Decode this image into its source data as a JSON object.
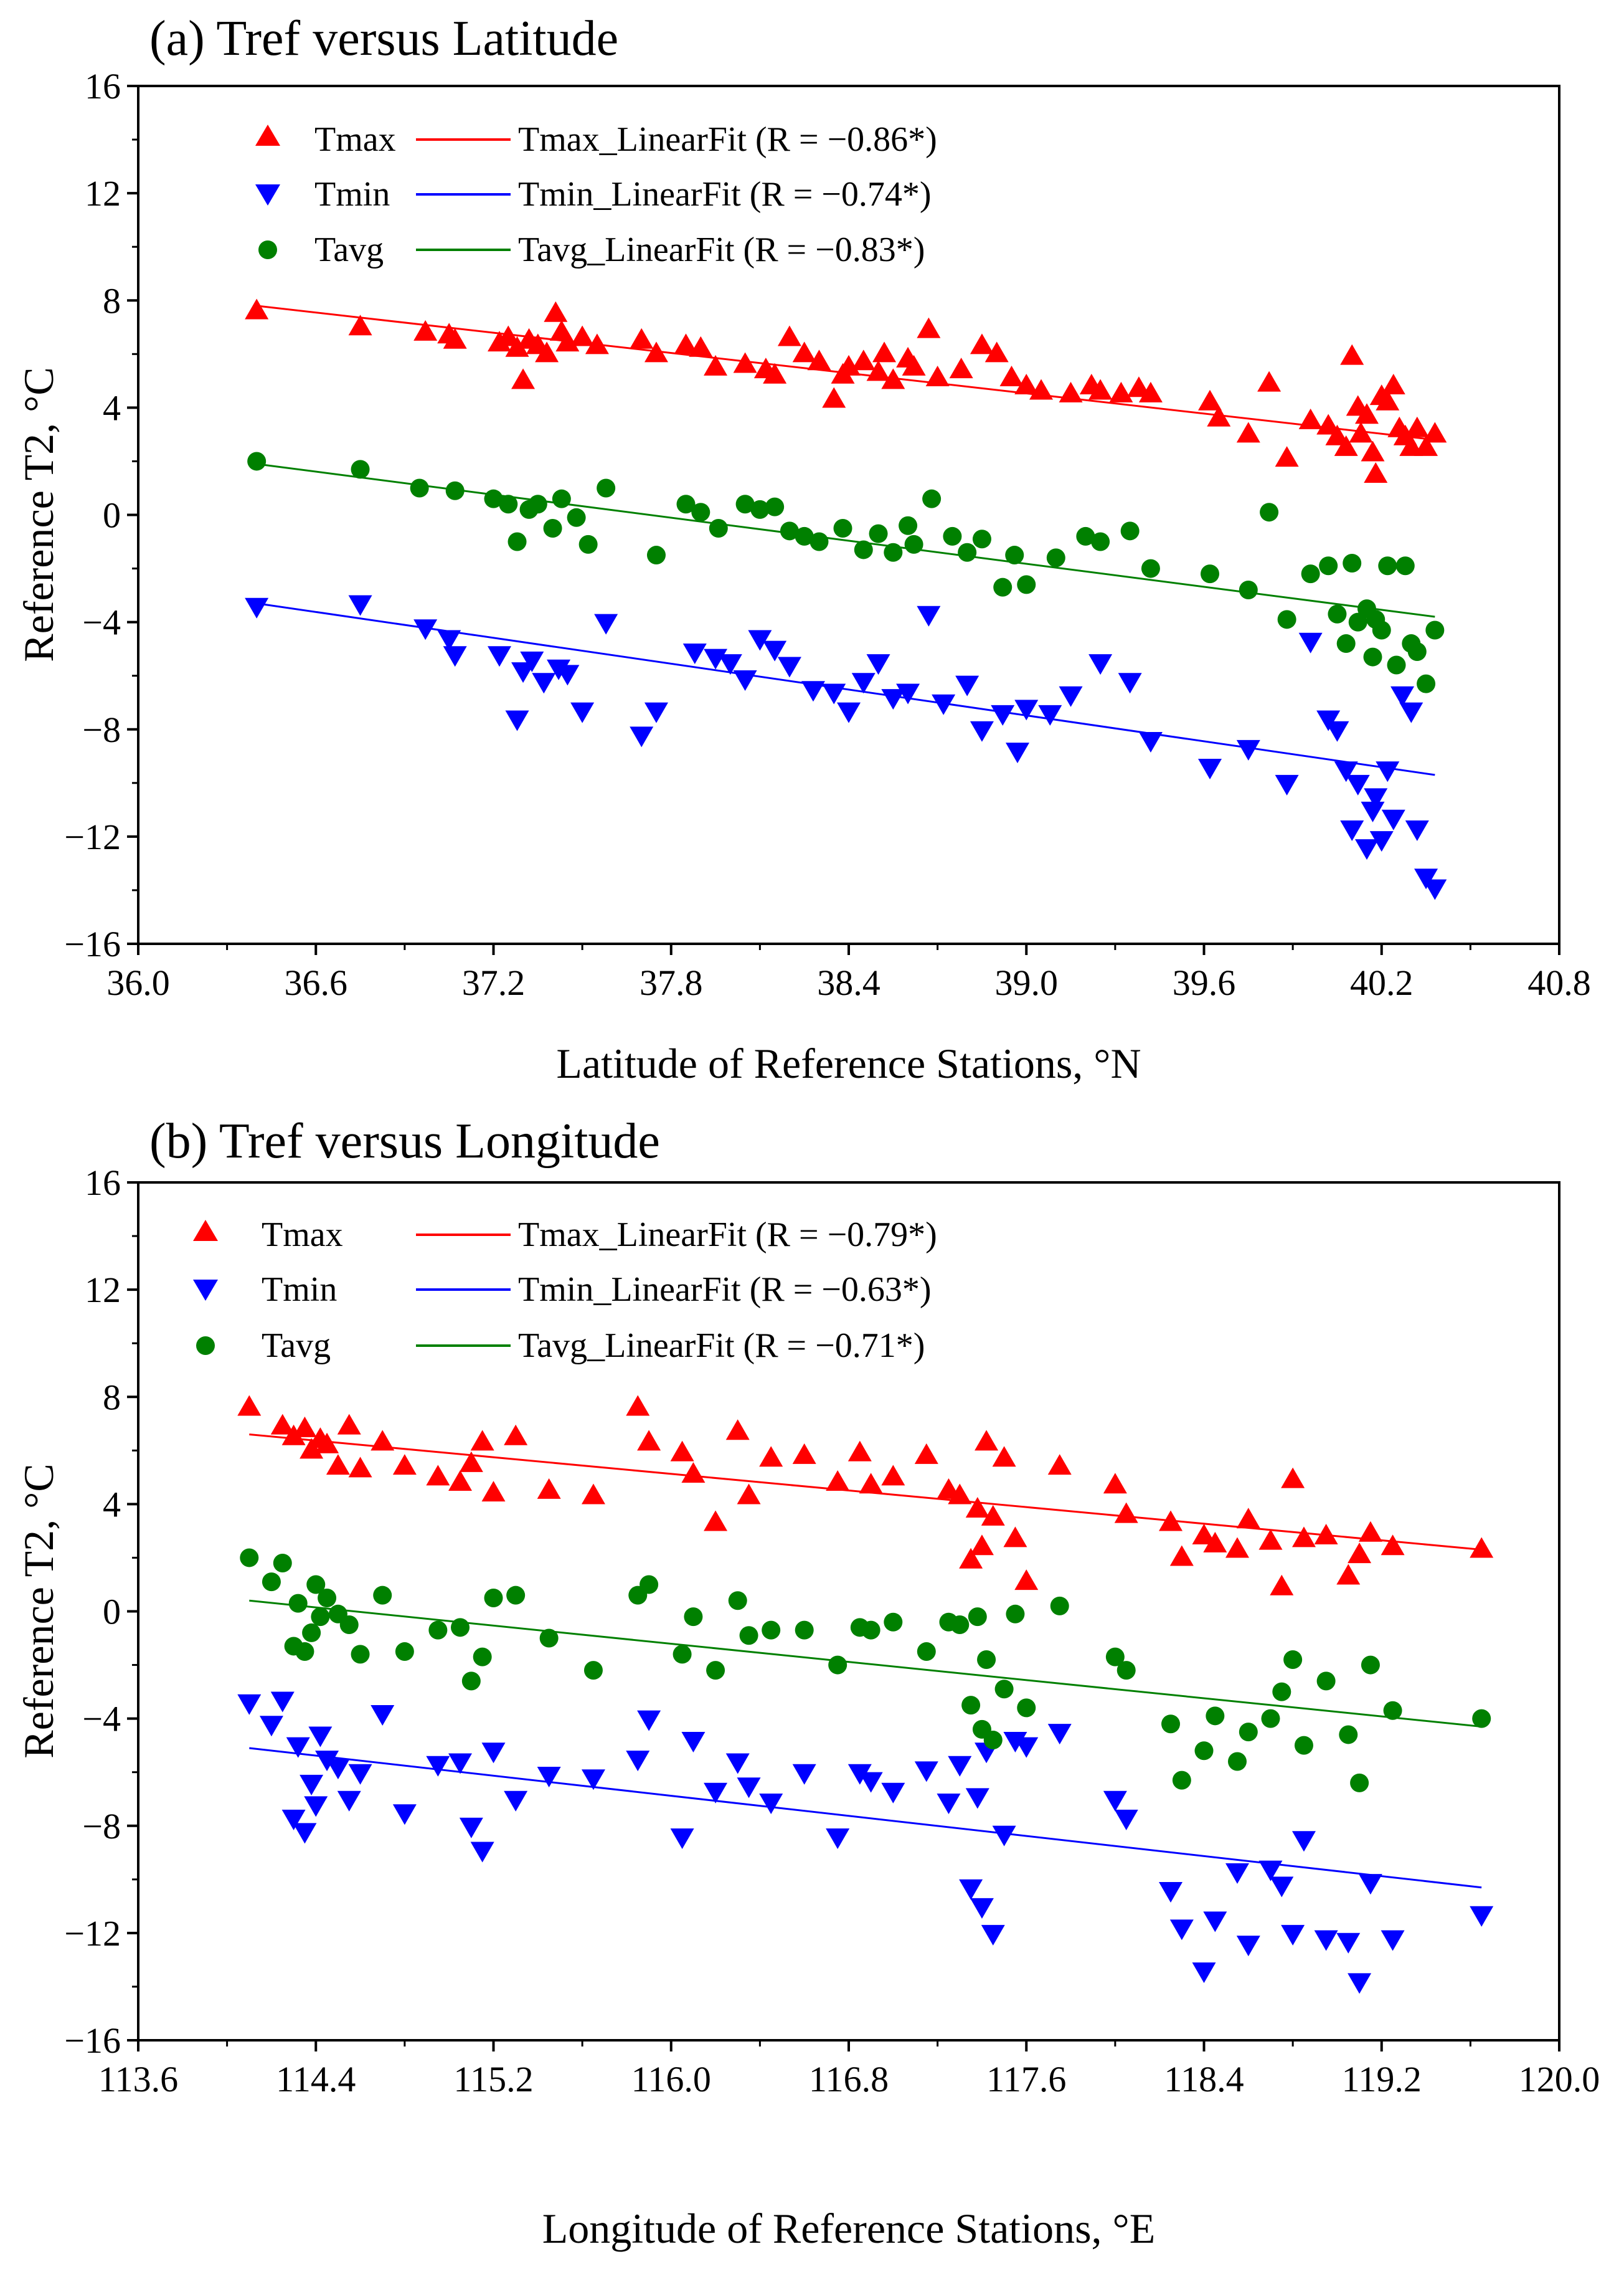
{
  "chart_data": [
    {
      "type": "scatter",
      "title": "(a) Tref versus Latitude",
      "xlabel": "Latitude of Reference Stations, °N",
      "ylabel": "Reference T2, °C",
      "xlim": [
        36.0,
        40.8
      ],
      "ylim": [
        -16,
        16
      ],
      "xticks": [
        "36.0",
        "36.6",
        "37.2",
        "37.8",
        "38.4",
        "39.0",
        "39.6",
        "40.2",
        "40.8"
      ],
      "yticks": [
        "−16",
        "−12",
        "−8",
        "−4",
        "0",
        "4",
        "8",
        "12",
        "16"
      ],
      "legend": [
        {
          "marker": "Tmax",
          "line": "Tmax_LinearFit (R = −0.86*)"
        },
        {
          "marker": "Tmin",
          "line": "Tmin_LinearFit (R = −0.74*)"
        },
        {
          "marker": "Tavg",
          "line": "Tavg_LinearFit (R = −0.83*)"
        }
      ],
      "series": [
        {
          "name": "Tmax",
          "color": "#ff0000",
          "marker": "triangle-up",
          "x": [
            36.4,
            36.75,
            36.97,
            37.05,
            37.07,
            37.22,
            37.25,
            37.28,
            37.3,
            37.32,
            37.35,
            37.38,
            37.41,
            37.43,
            37.45,
            37.5,
            37.55,
            37.7,
            37.75,
            37.85,
            37.9,
            37.95,
            38.05,
            38.12,
            38.15,
            38.2,
            38.25,
            38.3,
            38.35,
            38.38,
            38.4,
            38.45,
            38.5,
            38.52,
            38.55,
            38.6,
            38.62,
            38.67,
            38.7,
            38.78,
            38.85,
            38.9,
            38.95,
            39.0,
            39.05,
            39.15,
            39.22,
            39.25,
            39.32,
            39.38,
            39.42,
            39.62,
            39.65,
            39.75,
            39.82,
            39.88,
            39.96,
            40.02,
            40.05,
            40.08,
            40.1,
            40.12,
            40.13,
            40.15,
            40.17,
            40.18,
            40.2,
            40.22,
            40.24,
            40.26,
            40.28,
            40.3,
            40.32,
            40.35,
            40.38
          ],
          "y": [
            7.6,
            7.0,
            6.8,
            6.7,
            6.5,
            6.4,
            6.6,
            6.2,
            5.0,
            6.5,
            6.3,
            6.0,
            7.5,
            6.8,
            6.4,
            6.6,
            6.3,
            6.5,
            6.0,
            6.3,
            6.2,
            5.5,
            5.6,
            5.4,
            5.2,
            6.6,
            6.0,
            5.7,
            4.3,
            5.2,
            5.5,
            5.7,
            5.3,
            6.0,
            5.0,
            5.8,
            5.5,
            6.9,
            5.1,
            5.4,
            6.3,
            6.0,
            5.1,
            4.8,
            4.6,
            4.5,
            4.8,
            4.6,
            4.5,
            4.7,
            4.5,
            4.2,
            3.6,
            3.0,
            4.9,
            2.1,
            3.5,
            3.3,
            2.9,
            2.5,
            5.9,
            4.0,
            3.0,
            3.7,
            2.3,
            1.5,
            4.4,
            4.2,
            4.8,
            3.2,
            2.9,
            2.5,
            3.2,
            2.5,
            3.0
          ]
        },
        {
          "name": "Tmin",
          "color": "#0000ff",
          "marker": "triangle-down",
          "x": [
            36.4,
            36.75,
            36.97,
            37.05,
            37.07,
            37.22,
            37.28,
            37.3,
            37.33,
            37.37,
            37.42,
            37.45,
            37.5,
            37.58,
            37.7,
            37.75,
            37.88,
            37.95,
            38.0,
            38.05,
            38.1,
            38.15,
            38.2,
            38.28,
            38.35,
            38.4,
            38.45,
            38.5,
            38.55,
            38.6,
            38.67,
            38.72,
            38.8,
            38.85,
            38.92,
            38.97,
            39.0,
            39.08,
            39.15,
            39.25,
            39.35,
            39.42,
            39.62,
            39.75,
            39.88,
            39.96,
            40.02,
            40.05,
            40.08,
            40.1,
            40.12,
            40.15,
            40.17,
            40.18,
            40.2,
            40.22,
            40.24,
            40.27,
            40.3,
            40.32,
            40.35,
            40.38
          ],
          "y": [
            -3.4,
            -3.3,
            -4.2,
            -4.6,
            -5.2,
            -5.2,
            -7.6,
            -5.8,
            -5.4,
            -6.2,
            -5.7,
            -5.9,
            -7.3,
            -4.0,
            -8.2,
            -7.3,
            -5.1,
            -5.3,
            -5.5,
            -6.1,
            -4.6,
            -5.0,
            -5.6,
            -6.5,
            -6.6,
            -7.3,
            -6.2,
            -5.5,
            -6.8,
            -6.6,
            -3.7,
            -7.0,
            -6.3,
            -8.0,
            -7.4,
            -8.8,
            -7.2,
            -7.4,
            -6.7,
            -5.5,
            -6.2,
            -8.4,
            -9.4,
            -8.7,
            -10.0,
            -4.7,
            -7.6,
            -8.0,
            -9.5,
            -11.7,
            -10.0,
            -12.4,
            -11.0,
            -10.5,
            -12.1,
            -9.5,
            -11.3,
            -6.7,
            -7.3,
            -11.7,
            -13.5,
            -13.9
          ]
        },
        {
          "name": "Tavg",
          "color": "#008000",
          "marker": "circle",
          "x": [
            36.4,
            36.75,
            36.95,
            37.07,
            37.2,
            37.25,
            37.28,
            37.32,
            37.35,
            37.4,
            37.43,
            37.48,
            37.52,
            37.58,
            37.75,
            37.85,
            37.9,
            37.96,
            38.05,
            38.1,
            38.15,
            38.2,
            38.25,
            38.3,
            38.38,
            38.45,
            38.5,
            38.55,
            38.6,
            38.62,
            38.68,
            38.75,
            38.8,
            38.85,
            38.92,
            38.96,
            39.0,
            39.1,
            39.2,
            39.25,
            39.35,
            39.42,
            39.62,
            39.75,
            39.82,
            39.88,
            39.96,
            40.02,
            40.05,
            40.08,
            40.1,
            40.12,
            40.15,
            40.17,
            40.18,
            40.2,
            40.22,
            40.25,
            40.28,
            40.3,
            40.32,
            40.35,
            40.38
          ],
          "y": [
            2.0,
            1.7,
            1.0,
            0.9,
            0.6,
            0.4,
            -1.0,
            0.2,
            0.4,
            -0.5,
            0.6,
            -0.1,
            -1.1,
            1.0,
            -1.5,
            0.4,
            0.1,
            -0.5,
            0.4,
            0.2,
            0.3,
            -0.6,
            -0.8,
            -1.0,
            -0.5,
            -1.3,
            -0.7,
            -1.4,
            -0.4,
            -1.1,
            0.6,
            -0.8,
            -1.4,
            -0.9,
            -2.7,
            -1.5,
            -2.6,
            -1.6,
            -0.8,
            -1.0,
            -0.6,
            -2.0,
            -2.2,
            -2.8,
            0.1,
            -3.9,
            -2.2,
            -1.9,
            -3.7,
            -4.8,
            -1.8,
            -4.0,
            -3.5,
            -5.3,
            -3.9,
            -4.3,
            -1.9,
            -5.6,
            -1.9,
            -4.8,
            -5.1,
            -6.3,
            -4.3
          ]
        }
      ],
      "fits": [
        {
          "name": "Tmax_LinearFit",
          "color": "#ff0000",
          "x": [
            36.4,
            40.38
          ],
          "y": [
            7.8,
            2.8
          ]
        },
        {
          "name": "Tmin_LinearFit",
          "color": "#0000ff",
          "x": [
            36.4,
            40.38
          ],
          "y": [
            -3.3,
            -9.7
          ]
        },
        {
          "name": "Tavg_LinearFit",
          "color": "#008000",
          "x": [
            36.4,
            40.38
          ],
          "y": [
            1.9,
            -3.8
          ]
        }
      ]
    },
    {
      "type": "scatter",
      "title": "(b) Tref versus Longitude",
      "xlabel": "Longitude of Reference Stations, °E",
      "ylabel": "Reference T2, °C",
      "xlim": [
        113.6,
        120.0
      ],
      "ylim": [
        -16,
        16
      ],
      "xticks": [
        "113.6",
        "114.4",
        "115.2",
        "116.0",
        "116.8",
        "117.6",
        "118.4",
        "119.2",
        "120.0"
      ],
      "yticks": [
        "−16",
        "−12",
        "−8",
        "−4",
        "0",
        "4",
        "8",
        "12",
        "16"
      ],
      "legend": [
        {
          "marker": "Tmax",
          "line": "Tmax_LinearFit (R = −0.79*)"
        },
        {
          "marker": "Tmin",
          "line": "Tmin_LinearFit (R = −0.63*)"
        },
        {
          "marker": "Tavg",
          "line": "Tavg_LinearFit (R = −0.71*)"
        }
      ],
      "series": [
        {
          "name": "Tmax",
          "color": "#ff0000",
          "marker": "triangle-up",
          "x": [
            114.1,
            114.25,
            114.3,
            114.35,
            114.38,
            114.42,
            114.45,
            114.5,
            114.55,
            114.6,
            114.7,
            114.8,
            114.95,
            115.05,
            115.1,
            115.15,
            115.2,
            115.3,
            115.45,
            115.65,
            115.85,
            115.9,
            116.05,
            116.1,
            116.2,
            116.3,
            116.35,
            116.45,
            116.6,
            116.75,
            116.85,
            116.9,
            117.0,
            117.15,
            117.25,
            117.3,
            117.35,
            117.38,
            117.4,
            117.42,
            117.45,
            117.5,
            117.55,
            117.6,
            117.75,
            118.0,
            118.05,
            118.25,
            118.3,
            118.4,
            118.45,
            118.55,
            118.6,
            118.7,
            118.75,
            118.8,
            118.85,
            118.95,
            119.05,
            119.1,
            119.15,
            119.25,
            119.65
          ],
          "y": [
            7.6,
            6.9,
            6.5,
            6.8,
            6.0,
            6.4,
            6.2,
            5.4,
            6.9,
            5.3,
            6.3,
            5.4,
            5.0,
            4.8,
            5.5,
            6.3,
            4.4,
            6.5,
            4.5,
            4.3,
            7.6,
            6.3,
            5.9,
            5.1,
            3.3,
            6.7,
            4.3,
            5.7,
            5.8,
            4.8,
            5.9,
            4.7,
            5.0,
            5.8,
            4.5,
            4.3,
            1.9,
            3.8,
            2.4,
            6.3,
            3.5,
            5.7,
            2.7,
            1.1,
            5.4,
            4.7,
            3.6,
            3.3,
            2.0,
            2.8,
            2.5,
            2.3,
            3.4,
            2.6,
            0.9,
            4.9,
            2.7,
            2.8,
            1.3,
            2.1,
            2.9,
            2.4,
            2.3
          ]
        },
        {
          "name": "Tmin",
          "color": "#0000ff",
          "marker": "triangle-down",
          "x": [
            114.1,
            114.2,
            114.25,
            114.3,
            114.32,
            114.35,
            114.38,
            114.4,
            114.42,
            114.45,
            114.5,
            114.55,
            114.6,
            114.7,
            114.8,
            114.95,
            115.05,
            115.1,
            115.15,
            115.2,
            115.3,
            115.45,
            115.65,
            115.85,
            115.9,
            116.05,
            116.1,
            116.2,
            116.3,
            116.35,
            116.45,
            116.6,
            116.75,
            116.85,
            116.9,
            117.0,
            117.15,
            117.25,
            117.3,
            117.35,
            117.38,
            117.4,
            117.42,
            117.45,
            117.5,
            117.55,
            117.6,
            117.75,
            118.0,
            118.05,
            118.25,
            118.3,
            118.4,
            118.45,
            118.55,
            118.6,
            118.7,
            118.75,
            118.8,
            118.85,
            118.95,
            119.05,
            119.1,
            119.15,
            119.25,
            119.65
          ],
          "y": [
            -3.4,
            -4.2,
            -3.3,
            -7.7,
            -5.0,
            -8.2,
            -6.4,
            -7.2,
            -4.6,
            -5.5,
            -5.8,
            -7.0,
            -6.0,
            -3.8,
            -7.5,
            -5.7,
            -5.6,
            -8.0,
            -8.9,
            -5.2,
            -7.0,
            -6.1,
            -6.2,
            -5.5,
            -4.0,
            -8.4,
            -4.8,
            -6.7,
            -5.6,
            -6.5,
            -7.1,
            -6.0,
            -8.4,
            -6.0,
            -6.3,
            -6.7,
            -5.9,
            -7.1,
            -5.7,
            -10.3,
            -6.9,
            -11.0,
            -5.2,
            -12.0,
            -8.3,
            -4.8,
            -5.0,
            -4.5,
            -7.0,
            -7.7,
            -10.4,
            -11.8,
            -13.4,
            -11.5,
            -9.7,
            -12.4,
            -9.6,
            -10.2,
            -12.0,
            -8.5,
            -12.2,
            -12.3,
            -13.8,
            -10.1,
            -12.2,
            -11.3
          ]
        },
        {
          "name": "Tavg",
          "color": "#008000",
          "marker": "circle",
          "x": [
            114.1,
            114.2,
            114.25,
            114.3,
            114.32,
            114.35,
            114.38,
            114.4,
            114.42,
            114.45,
            114.5,
            114.55,
            114.6,
            114.7,
            114.8,
            114.95,
            115.05,
            115.1,
            115.15,
            115.2,
            115.3,
            115.45,
            115.65,
            115.85,
            115.9,
            116.05,
            116.1,
            116.2,
            116.3,
            116.35,
            116.45,
            116.6,
            116.75,
            116.85,
            116.9,
            117.0,
            117.15,
            117.25,
            117.3,
            117.35,
            117.38,
            117.4,
            117.42,
            117.45,
            117.5,
            117.55,
            117.6,
            117.75,
            118.0,
            118.05,
            118.25,
            118.3,
            118.4,
            118.45,
            118.55,
            118.6,
            118.7,
            118.75,
            118.8,
            118.85,
            118.95,
            119.05,
            119.1,
            119.15,
            119.25,
            119.65
          ],
          "y": [
            2.0,
            1.1,
            1.8,
            -1.3,
            0.3,
            -1.5,
            -0.8,
            1.0,
            -0.2,
            0.5,
            -0.1,
            -0.5,
            -1.6,
            0.6,
            -1.5,
            -0.7,
            -0.6,
            -2.6,
            -1.7,
            0.5,
            0.6,
            -1.0,
            -2.2,
            0.6,
            1.0,
            -1.6,
            -0.2,
            -2.2,
            0.4,
            -0.9,
            -0.7,
            -0.7,
            -2.0,
            -0.6,
            -0.7,
            -0.4,
            -1.5,
            -0.4,
            -0.5,
            -3.5,
            -0.2,
            -4.4,
            -1.8,
            -4.8,
            -2.9,
            -0.1,
            -3.6,
            0.2,
            -1.7,
            -2.2,
            -4.2,
            -6.3,
            -5.2,
            -3.9,
            -5.6,
            -4.5,
            -4.0,
            -3.0,
            -1.8,
            -5.0,
            -2.6,
            -4.6,
            -6.4,
            -2.0,
            -3.7,
            -4.0
          ]
        }
      ],
      "fits": [
        {
          "name": "Tmax_LinearFit",
          "color": "#ff0000",
          "x": [
            114.1,
            119.65
          ],
          "y": [
            6.6,
            2.3
          ]
        },
        {
          "name": "Tmin_LinearFit",
          "color": "#0000ff",
          "x": [
            114.1,
            119.65
          ],
          "y": [
            -5.1,
            -10.3
          ]
        },
        {
          "name": "Tavg_LinearFit",
          "color": "#008000",
          "x": [
            114.1,
            119.65
          ],
          "y": [
            0.4,
            -4.3
          ]
        }
      ]
    }
  ]
}
